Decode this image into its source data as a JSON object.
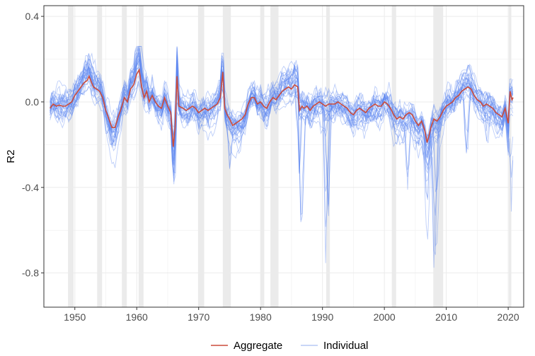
{
  "chart_data": {
    "type": "line",
    "title": "",
    "xlabel": "",
    "ylabel": "R2",
    "xlim": [
      1945.0,
      2022.5
    ],
    "ylim": [
      -0.96,
      0.45
    ],
    "x_ticks": [
      1950,
      1960,
      1970,
      1980,
      1990,
      2000,
      2010,
      2020
    ],
    "x_tick_labels": [
      "1950",
      "1960",
      "1970",
      "1980",
      "1990",
      "2000",
      "2010",
      "2020"
    ],
    "y_ticks": [
      0.4,
      0.0,
      -0.4,
      -0.8
    ],
    "y_tick_labels": [
      "0.4",
      "0.0",
      "-0.4",
      "-0.8"
    ],
    "grid": true,
    "legend_position": "bottom",
    "recession_bands": [
      [
        1948.9,
        1949.8
      ],
      [
        1953.6,
        1954.4
      ],
      [
        1957.6,
        1958.4
      ],
      [
        1960.3,
        1961.1
      ],
      [
        1969.9,
        1970.9
      ],
      [
        1973.9,
        1975.2
      ],
      [
        1980.0,
        1980.6
      ],
      [
        1981.6,
        1982.9
      ],
      [
        1990.6,
        1991.2
      ],
      [
        2001.2,
        2001.9
      ],
      [
        2007.9,
        2009.5
      ],
      [
        2020.1,
        2020.5
      ]
    ],
    "colors": {
      "aggregate": "#cc4c3b",
      "individual": "#5b84f0",
      "band": "#ebebeb",
      "grid": "#ebebeb"
    },
    "series": [
      {
        "name": "Aggregate",
        "points": [
          [
            1946.0,
            -0.03
          ],
          [
            1946.5,
            -0.01
          ],
          [
            1947.0,
            -0.02
          ],
          [
            1947.5,
            -0.015
          ],
          [
            1948.0,
            -0.02
          ],
          [
            1948.5,
            -0.02
          ],
          [
            1949.0,
            -0.01
          ],
          [
            1949.5,
            0.0
          ],
          [
            1950.0,
            0.03
          ],
          [
            1950.5,
            0.05
          ],
          [
            1951.0,
            0.07
          ],
          [
            1951.5,
            0.09
          ],
          [
            1952.0,
            0.1
          ],
          [
            1952.3,
            0.12
          ],
          [
            1952.7,
            0.09
          ],
          [
            1953.0,
            0.07
          ],
          [
            1953.5,
            0.06
          ],
          [
            1954.0,
            0.05
          ],
          [
            1954.5,
            0.02
          ],
          [
            1955.0,
            -0.04
          ],
          [
            1955.5,
            -0.08
          ],
          [
            1956.0,
            -0.12
          ],
          [
            1956.5,
            -0.12
          ],
          [
            1957.0,
            -0.07
          ],
          [
            1957.5,
            -0.03
          ],
          [
            1958.0,
            0.02
          ],
          [
            1958.5,
            0.0
          ],
          [
            1959.0,
            0.06
          ],
          [
            1959.5,
            0.08
          ],
          [
            1960.0,
            0.13
          ],
          [
            1960.4,
            0.15
          ],
          [
            1960.8,
            0.07
          ],
          [
            1961.2,
            0.02
          ],
          [
            1961.6,
            0.05
          ],
          [
            1962.0,
            0.0
          ],
          [
            1962.5,
            0.03
          ],
          [
            1963.0,
            0.0
          ],
          [
            1963.5,
            -0.02
          ],
          [
            1964.0,
            -0.03
          ],
          [
            1964.5,
            0.02
          ],
          [
            1965.0,
            -0.02
          ],
          [
            1965.5,
            -0.05
          ],
          [
            1965.9,
            -0.21
          ],
          [
            1966.2,
            -0.12
          ],
          [
            1966.5,
            0.12
          ],
          [
            1966.8,
            -0.02
          ],
          [
            1967.5,
            -0.03
          ],
          [
            1968.0,
            -0.04
          ],
          [
            1968.5,
            -0.03
          ],
          [
            1969.0,
            -0.02
          ],
          [
            1969.5,
            -0.03
          ],
          [
            1970.0,
            -0.05
          ],
          [
            1970.5,
            -0.04
          ],
          [
            1971.0,
            -0.03
          ],
          [
            1971.5,
            -0.04
          ],
          [
            1972.0,
            -0.03
          ],
          [
            1972.5,
            -0.02
          ],
          [
            1973.0,
            -0.01
          ],
          [
            1973.5,
            0.02
          ],
          [
            1973.9,
            0.14
          ],
          [
            1974.2,
            -0.03
          ],
          [
            1974.6,
            -0.06
          ],
          [
            1975.0,
            -0.08
          ],
          [
            1975.5,
            -0.11
          ],
          [
            1976.0,
            -0.1
          ],
          [
            1976.5,
            -0.09
          ],
          [
            1977.0,
            -0.08
          ],
          [
            1977.5,
            -0.06
          ],
          [
            1978.0,
            -0.01
          ],
          [
            1978.5,
            0.02
          ],
          [
            1979.0,
            0.02
          ],
          [
            1979.5,
            -0.01
          ],
          [
            1980.0,
            0.0
          ],
          [
            1980.5,
            -0.02
          ],
          [
            1981.0,
            -0.03
          ],
          [
            1981.5,
            0.0
          ],
          [
            1982.0,
            0.02
          ],
          [
            1982.5,
            0.01
          ],
          [
            1983.0,
            0.03
          ],
          [
            1983.5,
            0.05
          ],
          [
            1984.0,
            0.06
          ],
          [
            1984.5,
            0.07
          ],
          [
            1985.0,
            0.06
          ],
          [
            1985.5,
            0.08
          ],
          [
            1986.0,
            0.07
          ],
          [
            1986.3,
            -0.04
          ],
          [
            1986.7,
            -0.02
          ],
          [
            1987.0,
            -0.03
          ],
          [
            1987.5,
            -0.02
          ],
          [
            1988.0,
            -0.04
          ],
          [
            1988.5,
            -0.02
          ],
          [
            1989.0,
            -0.01
          ],
          [
            1989.5,
            0.0
          ],
          [
            1990.0,
            -0.01
          ],
          [
            1990.5,
            -0.02
          ],
          [
            1991.0,
            -0.01
          ],
          [
            1991.5,
            -0.01
          ],
          [
            1992.0,
            -0.01
          ],
          [
            1992.5,
            0.0
          ],
          [
            1993.0,
            -0.01
          ],
          [
            1993.5,
            -0.02
          ],
          [
            1994.0,
            -0.03
          ],
          [
            1994.5,
            -0.05
          ],
          [
            1995.0,
            -0.06
          ],
          [
            1995.5,
            -0.04
          ],
          [
            1996.0,
            -0.03
          ],
          [
            1996.5,
            -0.04
          ],
          [
            1997.0,
            -0.05
          ],
          [
            1997.5,
            -0.03
          ],
          [
            1998.0,
            -0.02
          ],
          [
            1998.5,
            -0.01
          ],
          [
            1999.0,
            -0.02
          ],
          [
            1999.5,
            -0.02
          ],
          [
            2000.0,
            0.0
          ],
          [
            2000.5,
            -0.01
          ],
          [
            2001.0,
            -0.03
          ],
          [
            2001.5,
            -0.06
          ],
          [
            2002.0,
            -0.08
          ],
          [
            2002.5,
            -0.07
          ],
          [
            2003.0,
            -0.08
          ],
          [
            2003.5,
            -0.06
          ],
          [
            2004.0,
            -0.05
          ],
          [
            2004.5,
            -0.06
          ],
          [
            2005.0,
            -0.09
          ],
          [
            2005.5,
            -0.11
          ],
          [
            2006.0,
            -0.09
          ],
          [
            2006.5,
            -0.13
          ],
          [
            2006.9,
            -0.19
          ],
          [
            2007.2,
            -0.16
          ],
          [
            2007.5,
            -0.12
          ],
          [
            2008.0,
            -0.08
          ],
          [
            2008.5,
            -0.09
          ],
          [
            2009.0,
            -0.07
          ],
          [
            2009.5,
            -0.04
          ],
          [
            2010.0,
            -0.02
          ],
          [
            2010.5,
            -0.01
          ],
          [
            2011.0,
            0.0
          ],
          [
            2011.5,
            0.02
          ],
          [
            2012.0,
            0.03
          ],
          [
            2012.5,
            0.05
          ],
          [
            2013.0,
            0.06
          ],
          [
            2013.5,
            0.07
          ],
          [
            2014.0,
            0.06
          ],
          [
            2014.5,
            0.03
          ],
          [
            2015.0,
            0.01
          ],
          [
            2015.5,
            0.0
          ],
          [
            2016.0,
            -0.02
          ],
          [
            2016.5,
            -0.01
          ],
          [
            2017.0,
            -0.02
          ],
          [
            2017.5,
            -0.03
          ],
          [
            2018.0,
            -0.05
          ],
          [
            2018.5,
            -0.06
          ],
          [
            2019.0,
            -0.07
          ],
          [
            2019.5,
            -0.03
          ],
          [
            2020.0,
            -0.1
          ],
          [
            2020.3,
            0.05
          ],
          [
            2020.6,
            0.01
          ],
          [
            2020.8,
            0.02
          ]
        ]
      },
      {
        "name": "Individual",
        "count": 28
      }
    ]
  },
  "legend": {
    "items": [
      {
        "label": "Aggregate",
        "color": "#cc4c3b"
      },
      {
        "label": "Individual",
        "color": "#a9bef2"
      }
    ]
  }
}
